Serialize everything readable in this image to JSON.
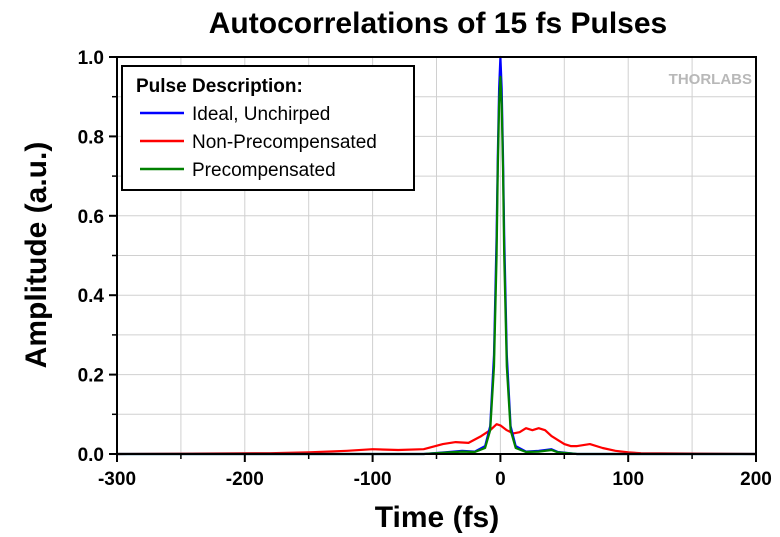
{
  "chart_data": {
    "type": "line",
    "title": "Autocorrelations of 15 fs Pulses",
    "xlabel": "Time (fs)",
    "ylabel": "Amplitude (a.u.)",
    "xlim": [
      -300,
      200
    ],
    "ylim": [
      0,
      1.0
    ],
    "xticks": [
      -300,
      -200,
      -100,
      0,
      100,
      200
    ],
    "xtick_labels": [
      "-300",
      "-200",
      "-100",
      "0",
      "100",
      "200"
    ],
    "yticks": [
      0,
      0.2,
      0.4,
      0.6,
      0.8,
      1.0
    ],
    "ytick_labels": [
      "0.0",
      "0.2",
      "0.4",
      "0.6",
      "0.8",
      "1.0"
    ],
    "grid": true,
    "legend": {
      "title": "Pulse Description:",
      "placement": "top-left"
    },
    "logo": "THORLABS",
    "series": [
      {
        "name": "Ideal, Unchirped",
        "color": "#0000ff",
        "x": [
          -300,
          -60,
          -40,
          -30,
          -20,
          -12,
          -8,
          -5,
          -3,
          -2,
          -1,
          0,
          1,
          2,
          3,
          5,
          8,
          12,
          20,
          30,
          40,
          45,
          60,
          200
        ],
        "y": [
          0,
          0,
          0.005,
          0.008,
          0.006,
          0.02,
          0.07,
          0.25,
          0.55,
          0.75,
          0.92,
          1.0,
          0.92,
          0.75,
          0.55,
          0.25,
          0.07,
          0.02,
          0.006,
          0.008,
          0.012,
          0.005,
          0,
          0
        ]
      },
      {
        "name": "Non-Precompensated",
        "color": "#ff0000",
        "x": [
          -300,
          -180,
          -150,
          -120,
          -100,
          -80,
          -60,
          -45,
          -35,
          -25,
          -15,
          -8,
          -3,
          0,
          5,
          10,
          15,
          20,
          25,
          30,
          35,
          40,
          45,
          50,
          55,
          60,
          70,
          80,
          90,
          100,
          110,
          200
        ],
        "y": [
          0,
          0.002,
          0.004,
          0.008,
          0.012,
          0.01,
          0.012,
          0.025,
          0.03,
          0.028,
          0.045,
          0.06,
          0.075,
          0.072,
          0.06,
          0.052,
          0.055,
          0.065,
          0.06,
          0.065,
          0.06,
          0.045,
          0.035,
          0.025,
          0.02,
          0.02,
          0.025,
          0.015,
          0.008,
          0.004,
          0.002,
          0
        ]
      },
      {
        "name": "Precompensated",
        "color": "#008000",
        "x": [
          -300,
          -60,
          -40,
          -30,
          -20,
          -12,
          -8,
          -5,
          -3,
          -2,
          -1,
          0,
          1,
          2,
          3,
          5,
          8,
          12,
          20,
          30,
          40,
          45,
          60,
          200
        ],
        "y": [
          0,
          0,
          0.004,
          0.006,
          0.005,
          0.015,
          0.06,
          0.22,
          0.5,
          0.72,
          0.88,
          0.95,
          0.88,
          0.72,
          0.5,
          0.22,
          0.06,
          0.015,
          0.005,
          0.006,
          0.01,
          0.004,
          0,
          0
        ]
      }
    ]
  }
}
